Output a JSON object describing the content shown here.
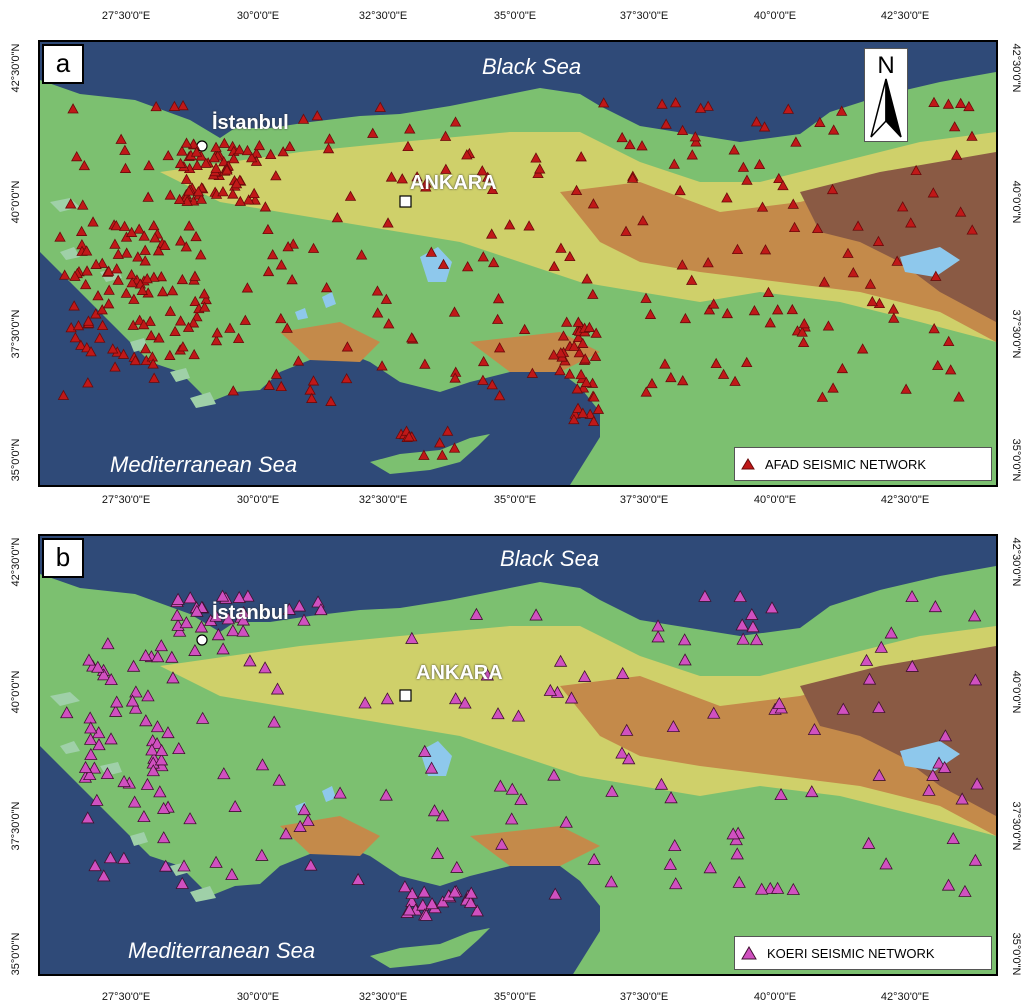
{
  "longitudes": [
    "27°30'0\"E",
    "30°0'0\"E",
    "32°30'0\"E",
    "35°0'0\"E",
    "37°30'0\"E",
    "40°0'0\"E",
    "42°30'0\"E"
  ],
  "latitudes": [
    "42°30'0\"N",
    "40°0'0\"N",
    "37°30'0\"N",
    "35°0'0\"N"
  ],
  "north_label": "N",
  "panels": [
    {
      "label": "a",
      "black_sea": "Black Sea",
      "med_sea": "Mediterranean Sea",
      "istanbul": "İstanbul",
      "ankara": "ANKARA",
      "legend": "AFAD SEISMIC NETWORK",
      "marker_color": "#c01818",
      "marker_outline": "#6a0a0a"
    },
    {
      "label": "b",
      "black_sea": "Black Sea",
      "med_sea": "Mediterranean Sea",
      "istanbul": "İstanbul",
      "ankara": "ANKARA",
      "legend": "KOERI SEISMIC NETWORK",
      "marker_color": "#d050c0",
      "marker_outline": "#401030"
    }
  ],
  "colors": {
    "sea": "#2f4a78",
    "lowland": "#9fd0a8",
    "plain": "#7cc070",
    "upland": "#cfd06a",
    "highland": "#c48a4a",
    "mountain": "#8a5a44",
    "lake": "#8ec8ec"
  }
}
